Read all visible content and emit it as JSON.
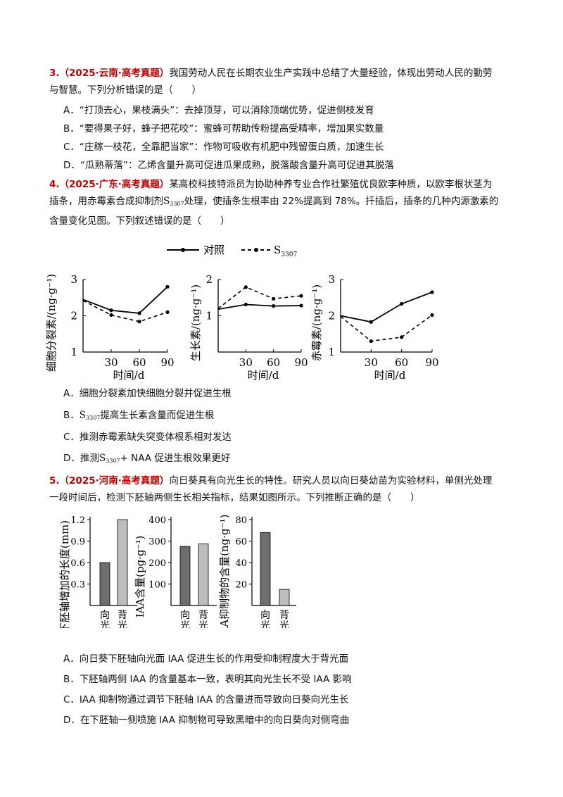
{
  "q3": {
    "num": "3.",
    "source": "（2025·云南·高考真题）",
    "line1": "我国劳动人民在长期农业生产实践中总结了大量经验，体现出劳动人民的勤劳",
    "line2": "与智慧。下列分析错误的是（　　）",
    "options": [
      "A．“打顶去心，果枝满头”：去掉顶芽，可以消除顶端优势，促进侧枝发育",
      "B．“要得果子好，蜂子把花咬”：蜜蜂可帮助传粉提高受精率，增加果实数量",
      "C．“庄稼一枝花，全靠肥当家”：作物可吸收有机肥中残留蛋白质，加速生长",
      "D．“瓜熟蒂落”：乙烯含量升高可促进瓜果成熟，脱落酸含量升高可促进其脱落"
    ]
  },
  "q4": {
    "num": "4.",
    "source": "（2025·广东·高考真题）",
    "line1": "某高校科技特派员为协助种养专业合作社繁殖优良欧李种质，以欧李根状茎为",
    "line2_pre": "插条，用赤霉素合成抑制剂",
    "line2_post": "处理，使插条生根率由 22%提高到 78%。扦插后，插条的几种内源激素的",
    "line3": "含量变化见图。下列叙述错误的是（　　）",
    "s_base": "S",
    "s_sub": "3307",
    "options": {
      "a": "A．细胞分裂素加快细胞分裂并促进生根",
      "b_pre": "B．",
      "b_post": "提高生长素含量而促进生根",
      "c": "C．推测赤霉素缺失突变体根系相对发达",
      "d_pre": "D．推测",
      "d_post": "+ NAA 促进生根效果更好"
    }
  },
  "q5": {
    "num": "5.",
    "source": "（2025·河南·高考真题）",
    "line1": "向日葵具有向光生长的特性。研究人员以向日葵幼苗为实验材料，单侧光处理",
    "line2": "一段时间后，检测下胚轴两侧生长相关指标，结果如图所示。下列推断正确的是（　　）",
    "options": [
      "A．向日葵下胚轴向光面 IAA 促进生长的作用受抑制程度大于背光面",
      "B．下胚轴两侧 IAA 的含量基本一致，表明其向光生长不受 IAA 影响",
      "C．IAA 抑制物通过调节下胚轴 IAA 的含量进而导致向日葵向光生长",
      "D．在下胚轴一侧喷施 IAA 抑制物可导致黑暗中的向日葵向对侧弯曲"
    ]
  },
  "chart_data": [
    {
      "type": "line",
      "x": [
        0,
        30,
        60,
        90
      ],
      "xlabel": "时间/d",
      "ylabel": "细胞分裂素/(ng·g⁻¹)",
      "ylim": [
        1,
        3
      ],
      "xticks": [
        "30",
        "60",
        "90"
      ],
      "yticks": [
        "1",
        "2",
        "3"
      ],
      "legend": {
        "placement": "top",
        "control": "对照",
        "treat": "S",
        "treat_sub": "3307"
      },
      "series": [
        {
          "name": "对照",
          "values": [
            2.45,
            2.15,
            2.07,
            2.8
          ],
          "style": "solid"
        },
        {
          "name": "S3307",
          "values": [
            2.42,
            2.02,
            1.84,
            2.1
          ],
          "style": "dashed"
        }
      ]
    },
    {
      "type": "line",
      "x": [
        0,
        30,
        60,
        90
      ],
      "xlabel": "时间/d",
      "ylabel": "生长素/(ng·g⁻¹)",
      "ylim": [
        0,
        2
      ],
      "xticks": [
        "30",
        "60",
        "90"
      ],
      "yticks": [
        "1",
        "2"
      ],
      "series": [
        {
          "name": "对照",
          "values": [
            1.18,
            1.31,
            1.27,
            1.28
          ],
          "style": "solid"
        },
        {
          "name": "S3307",
          "values": [
            1.2,
            1.79,
            1.47,
            1.55
          ],
          "style": "dashed"
        }
      ]
    },
    {
      "type": "line",
      "x": [
        0,
        30,
        60,
        90
      ],
      "xlabel": "时间/d",
      "ylabel": "赤霉素/(ng·g⁻¹)",
      "ylim": [
        1,
        3
      ],
      "xticks": [
        "30",
        "60",
        "90"
      ],
      "yticks": [
        "1",
        "2",
        "3"
      ],
      "series": [
        {
          "name": "对照",
          "values": [
            2.0,
            1.83,
            2.33,
            2.65
          ],
          "style": "solid"
        },
        {
          "name": "S3307",
          "values": [
            1.98,
            1.3,
            1.41,
            2.02
          ],
          "style": "dashed"
        }
      ]
    },
    {
      "type": "bar",
      "categories": [
        "向光面",
        "背光面"
      ],
      "values": [
        0.6,
        1.2
      ],
      "ylabel": "下胚轴增加的长度(mm)",
      "ylim": [
        0,
        1.2
      ],
      "yticks": [
        "0.3",
        "0.6",
        "0.9",
        "1.2"
      ],
      "colors": [
        "#6e6e6e",
        "#bdbdbd"
      ]
    },
    {
      "type": "bar",
      "categories": [
        "向光面",
        "背光面"
      ],
      "values": [
        275,
        287
      ],
      "ylabel": "IAA含量(pg·g⁻¹)",
      "ylim": [
        0,
        400
      ],
      "yticks": [
        "100",
        "200",
        "300",
        "400"
      ],
      "colors": [
        "#6e6e6e",
        "#bdbdbd"
      ]
    },
    {
      "type": "bar",
      "categories": [
        "向光面",
        "背光面"
      ],
      "values": [
        68,
        15
      ],
      "ylabel": "IAA抑制物的含量(ng·g⁻¹)",
      "ylim": [
        0,
        80
      ],
      "yticks": [
        "20",
        "40",
        "60",
        "80"
      ],
      "colors": [
        "#6e6e6e",
        "#bdbdbd"
      ]
    }
  ]
}
